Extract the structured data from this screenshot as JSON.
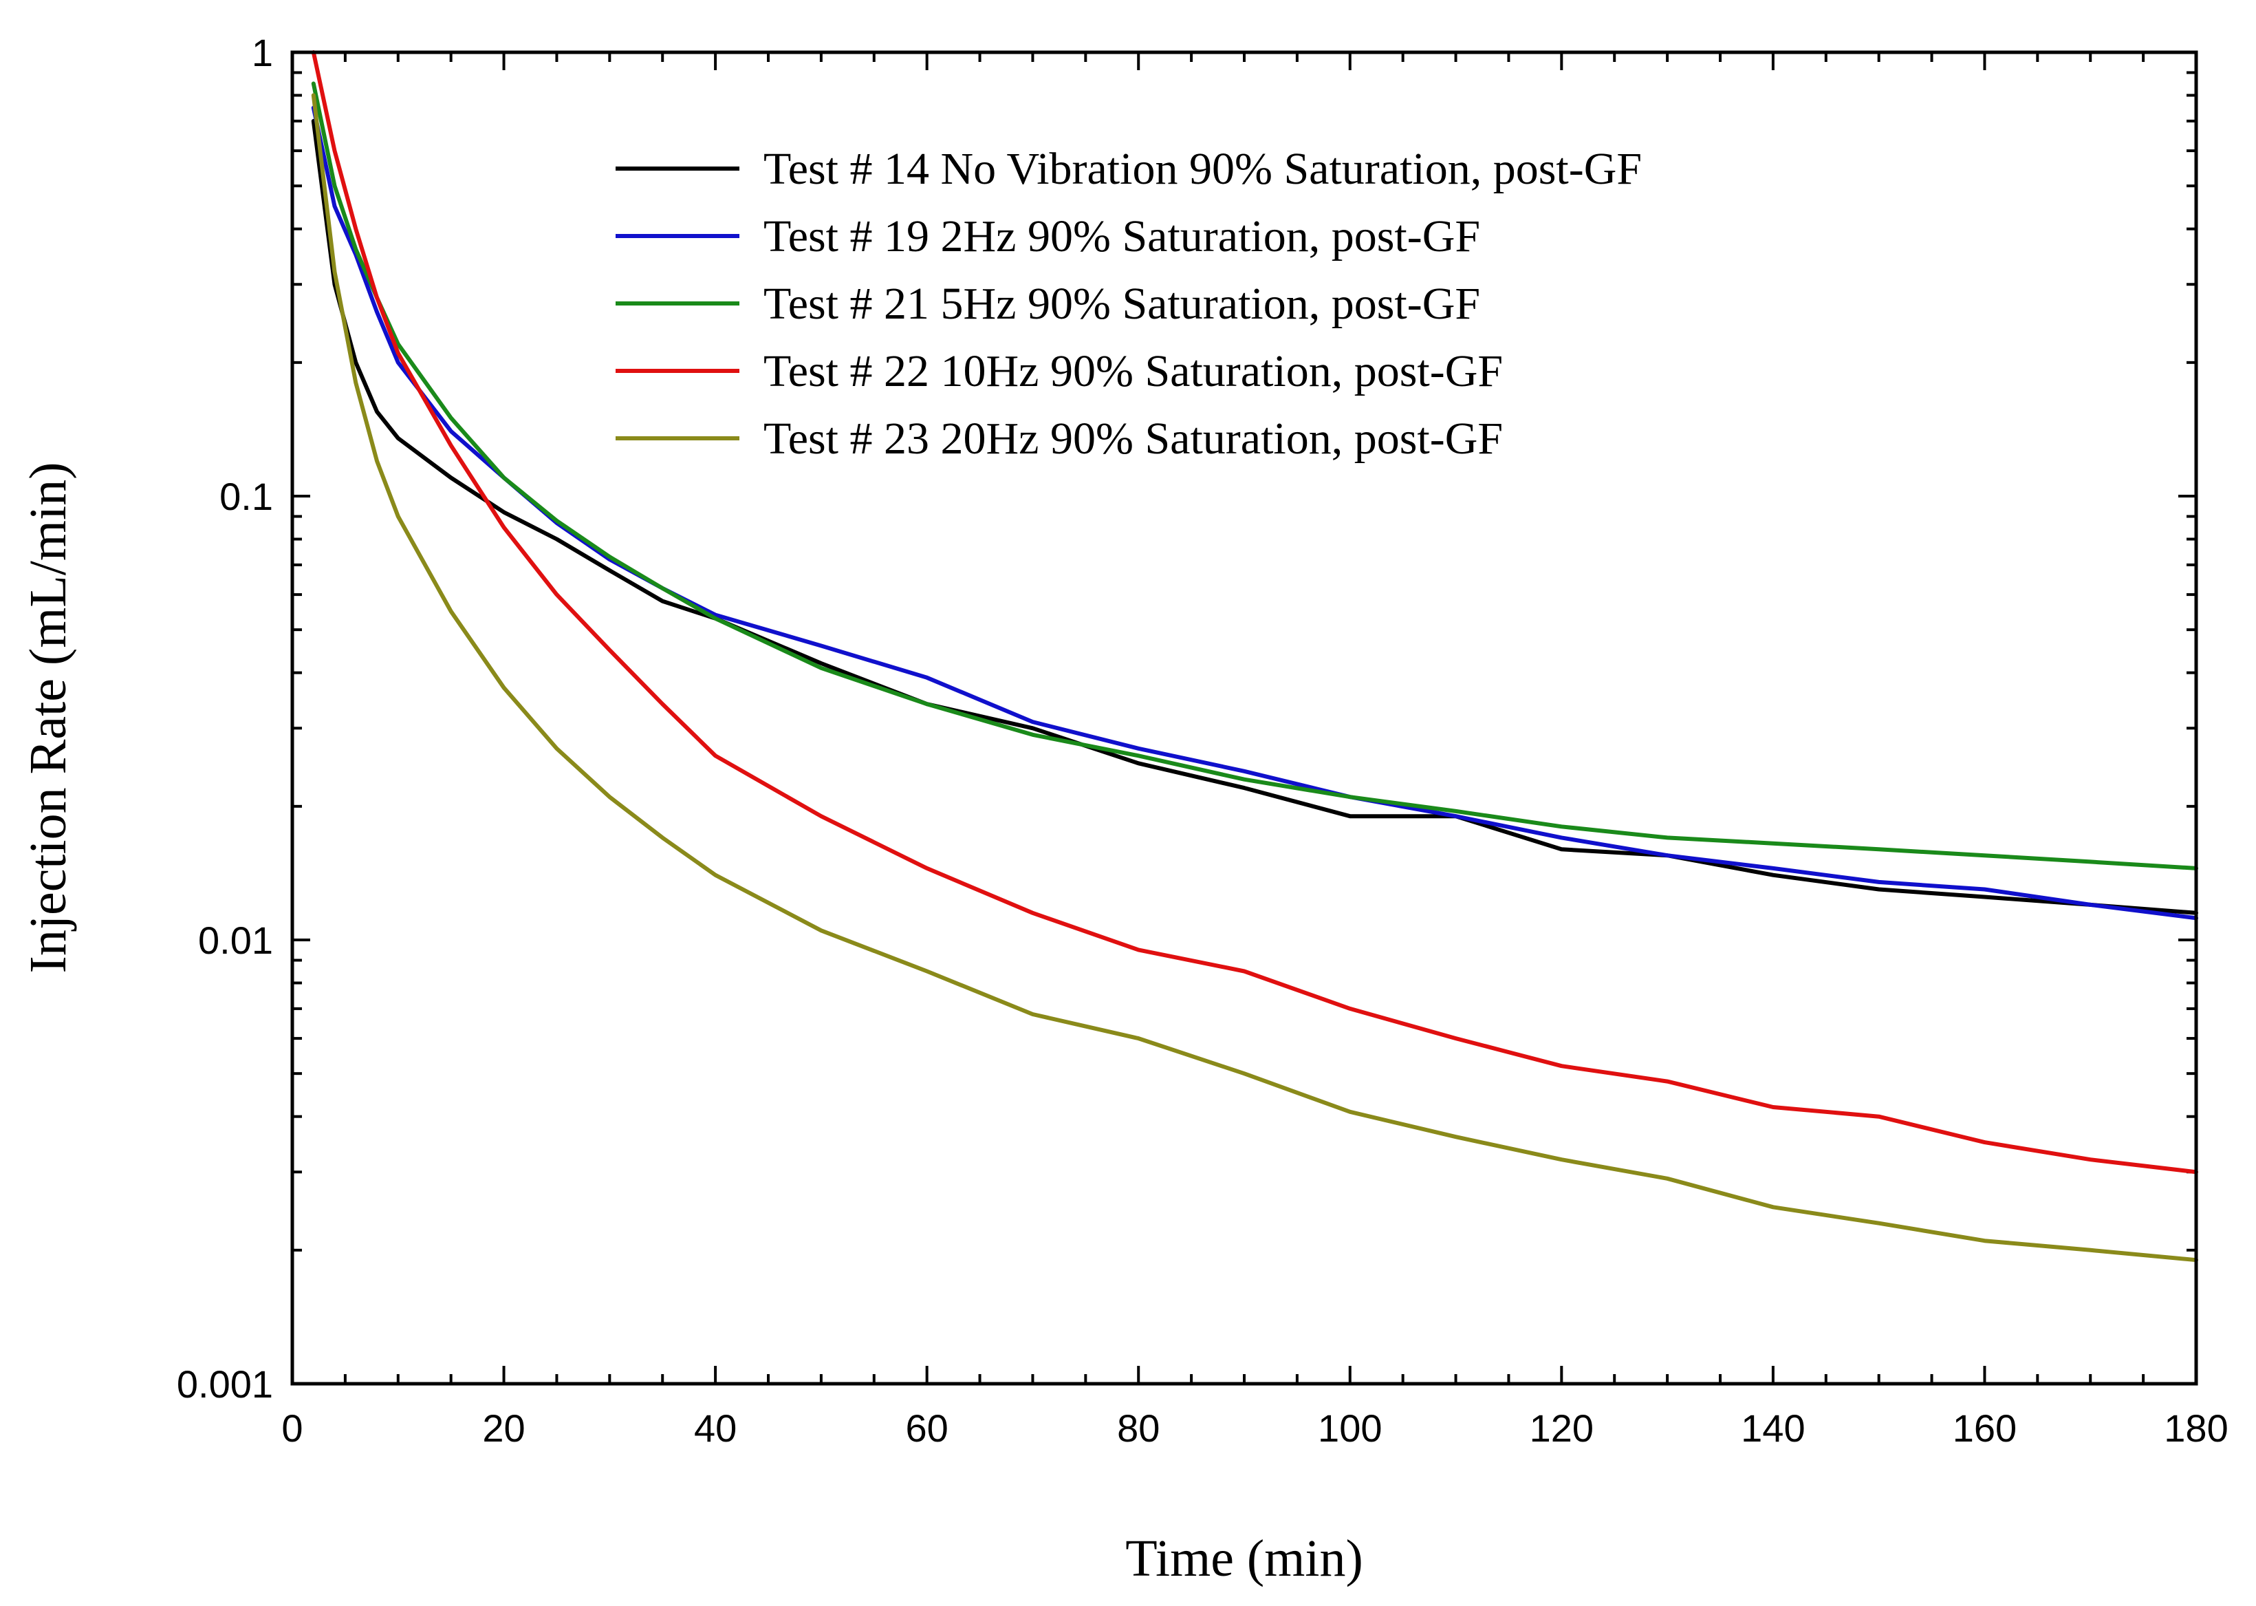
{
  "chart_data": {
    "type": "line",
    "title": "",
    "xlabel": "Time (min)",
    "ylabel": "Injection Rate (mL/min)",
    "xlim": [
      0,
      180
    ],
    "ylim": [
      0.001,
      1
    ],
    "yscale": "log",
    "grid": false,
    "legend_position": "top-center",
    "x_ticks": [
      0,
      20,
      40,
      60,
      80,
      100,
      120,
      140,
      160,
      180
    ],
    "x_tick_labels": [
      "0",
      "20",
      "40",
      "60",
      "80",
      "100",
      "120",
      "140",
      "160",
      "180"
    ],
    "y_ticks": [
      0.001,
      0.01,
      0.1,
      1
    ],
    "y_tick_labels": [
      "0.001",
      "0.01",
      "0.1",
      "1"
    ],
    "x": [
      2,
      4,
      6,
      8,
      10,
      15,
      20,
      25,
      30,
      35,
      40,
      50,
      60,
      70,
      80,
      90,
      100,
      110,
      120,
      130,
      140,
      150,
      160,
      170,
      180
    ],
    "series": [
      {
        "name": "Test # 14 No Vibration 90% Saturation, post-GF",
        "color": "#000000",
        "values": [
          0.7,
          0.3,
          0.2,
          0.155,
          0.135,
          0.11,
          0.092,
          0.08,
          0.068,
          0.058,
          0.053,
          0.042,
          0.034,
          0.03,
          0.025,
          0.022,
          0.019,
          0.019,
          0.016,
          0.0155,
          0.014,
          0.013,
          0.0125,
          0.012,
          0.0115
        ]
      },
      {
        "name": "Test # 19 2Hz 90% Saturation, post-GF",
        "color": "#1010cc",
        "values": [
          0.75,
          0.45,
          0.35,
          0.26,
          0.2,
          0.14,
          0.11,
          0.087,
          0.072,
          0.062,
          0.054,
          0.046,
          0.039,
          0.031,
          0.027,
          0.024,
          0.021,
          0.019,
          0.017,
          0.0155,
          0.0145,
          0.0135,
          0.013,
          0.012,
          0.0112
        ]
      },
      {
        "name": "Test # 21 5Hz 90% Saturation, post-GF",
        "color": "#1a8a1a",
        "values": [
          0.85,
          0.5,
          0.36,
          0.28,
          0.22,
          0.15,
          0.11,
          0.088,
          0.073,
          0.062,
          0.053,
          0.041,
          0.034,
          0.029,
          0.026,
          0.023,
          0.021,
          0.0195,
          0.018,
          0.017,
          0.0165,
          0.016,
          0.0155,
          0.015,
          0.0145
        ]
      },
      {
        "name": "Test # 22 10Hz 90% Saturation, post-GF",
        "color": "#e01010",
        "values": [
          1.0,
          0.6,
          0.4,
          0.28,
          0.21,
          0.13,
          0.085,
          0.06,
          0.045,
          0.034,
          0.026,
          0.019,
          0.0145,
          0.0115,
          0.0095,
          0.0085,
          0.007,
          0.006,
          0.0052,
          0.0048,
          0.0042,
          0.004,
          0.0035,
          0.0032,
          0.003
        ]
      },
      {
        "name": "Test # 23 20Hz 90% Saturation, post-GF",
        "color": "#8a8a1a",
        "values": [
          0.8,
          0.32,
          0.18,
          0.12,
          0.09,
          0.055,
          0.037,
          0.027,
          0.021,
          0.017,
          0.014,
          0.0105,
          0.0085,
          0.0068,
          0.006,
          0.005,
          0.0041,
          0.0036,
          0.0032,
          0.0029,
          0.0025,
          0.0023,
          0.0021,
          0.002,
          0.0019
        ]
      }
    ]
  }
}
